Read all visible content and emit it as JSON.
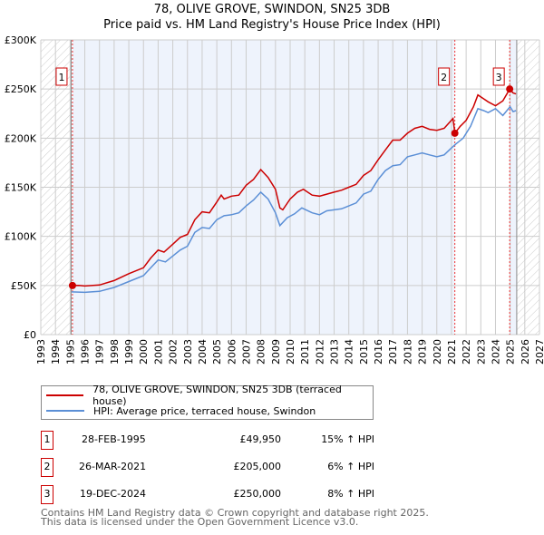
{
  "chart_data": {
    "type": "line",
    "title": "78, OLIVE GROVE, SWINDON, SN25 3DB",
    "subtitle": "Price paid vs. HM Land Registry's House Price Index (HPI)",
    "xlim": [
      1993,
      2027
    ],
    "ylim": [
      0,
      300000
    ],
    "x_ticks": [
      "1993",
      "1994",
      "1995",
      "1996",
      "1997",
      "1998",
      "1999",
      "2000",
      "2001",
      "2002",
      "2003",
      "2004",
      "2005",
      "2006",
      "2007",
      "2008",
      "2009",
      "2010",
      "2011",
      "2012",
      "2013",
      "2014",
      "2015",
      "2016",
      "2017",
      "2018",
      "2019",
      "2020",
      "2021",
      "2022",
      "2023",
      "2024",
      "2025",
      "2026",
      "2027"
    ],
    "y_ticks": [
      {
        "v": 0,
        "label": "£0"
      },
      {
        "v": 50000,
        "label": "£50K"
      },
      {
        "v": 100000,
        "label": "£100K"
      },
      {
        "v": 150000,
        "label": "£150K"
      },
      {
        "v": 200000,
        "label": "£200K"
      },
      {
        "v": 250000,
        "label": "£250K"
      },
      {
        "v": 300000,
        "label": "£300K"
      }
    ],
    "grid": true,
    "series": [
      {
        "name": "78, OLIVE GROVE, SWINDON, SN25 3DB (terraced house)",
        "color": "#cc0000",
        "x": [
          1995.16,
          1995.6,
          1996,
          1997,
          1998,
          1999,
          2000,
          2000.5,
          2001,
          2001.4,
          2002,
          2002.5,
          2003,
          2003.5,
          2004,
          2004.5,
          2005,
          2005.3,
          2005.5,
          2006,
          2006.5,
          2007,
          2007.5,
          2008,
          2008.5,
          2009,
          2009.3,
          2009.5,
          2010,
          2010.5,
          2010.9,
          2011.5,
          2012,
          2012.5,
          2013,
          2013.5,
          2014,
          2014.5,
          2015,
          2015.5,
          2016,
          2016.5,
          2017,
          2017.5,
          2018,
          2018.5,
          2019,
          2019.5,
          2020,
          2020.5,
          2021.1,
          2021.23,
          2021.6,
          2022,
          2022.5,
          2022.8,
          2023.2,
          2023.5,
          2024,
          2024.5,
          2024.97,
          2025.2,
          2025.4
        ],
        "y": [
          49950,
          50000,
          49500,
          50500,
          55000,
          62000,
          68000,
          78000,
          86000,
          84000,
          92000,
          99000,
          102000,
          117000,
          125000,
          124000,
          135000,
          142000,
          138000,
          141000,
          142000,
          152000,
          158000,
          168000,
          160000,
          148000,
          129000,
          127000,
          138000,
          145000,
          148000,
          142000,
          141000,
          143000,
          145000,
          147000,
          150000,
          153000,
          162000,
          167000,
          178000,
          188000,
          198000,
          198000,
          205000,
          210000,
          212000,
          209000,
          208000,
          210000,
          220000,
          205000,
          212000,
          218000,
          232000,
          244000,
          240000,
          237000,
          233000,
          238000,
          250000,
          246000,
          245000
        ]
      },
      {
        "name": "HPI: Average price, terraced house, Swindon",
        "color": "#5b8fd6",
        "x": [
          1995.1,
          1996,
          1997,
          1998,
          1999,
          2000,
          2000.5,
          2001,
          2001.5,
          2002,
          2002.5,
          2003,
          2003.5,
          2004,
          2004.5,
          2005,
          2005.5,
          2006,
          2006.5,
          2007,
          2007.5,
          2008,
          2008.5,
          2009,
          2009.3,
          2009.8,
          2010.3,
          2010.8,
          2011.5,
          2012,
          2012.5,
          2013,
          2013.5,
          2014,
          2014.5,
          2015,
          2015.5,
          2016,
          2016.5,
          2017,
          2017.5,
          2018,
          2018.5,
          2019,
          2019.5,
          2020,
          2020.5,
          2021,
          2021.3,
          2021.8,
          2022.3,
          2022.8,
          2023.2,
          2023.5,
          2024,
          2024.5,
          2025,
          2025.2,
          2025.4
        ],
        "y": [
          43500,
          43000,
          44000,
          48000,
          54000,
          60000,
          68000,
          76000,
          74000,
          80000,
          86000,
          90000,
          104000,
          109000,
          108000,
          117000,
          121000,
          122000,
          124000,
          131000,
          137000,
          145000,
          138000,
          124000,
          111000,
          119000,
          123000,
          129000,
          124000,
          122000,
          126000,
          127000,
          128000,
          131000,
          134000,
          143000,
          146000,
          158000,
          167000,
          172000,
          173000,
          181000,
          183000,
          185000,
          183000,
          181000,
          183000,
          190000,
          194000,
          200000,
          212000,
          230000,
          228000,
          226000,
          230000,
          223000,
          232000,
          227000,
          228000
        ]
      }
    ],
    "transactions": [
      {
        "n": "1",
        "date": "28-FEB-1995",
        "x": 1995.16,
        "price": "£49,950",
        "value": 49950,
        "hpi": "15% ↑ HPI"
      },
      {
        "n": "2",
        "date": "26-MAR-2021",
        "x": 2021.23,
        "price": "£205,000",
        "value": 205000,
        "hpi": "6% ↑ HPI"
      },
      {
        "n": "3",
        "date": "19-DEC-2024",
        "x": 2024.97,
        "price": "£250,000",
        "value": 250000,
        "hpi": "8% ↑ HPI"
      }
    ]
  },
  "footer": {
    "line1": "Contains HM Land Registry data © Crown copyright and database right 2025.",
    "line2": "This data is licensed under the Open Government Licence v3.0."
  }
}
